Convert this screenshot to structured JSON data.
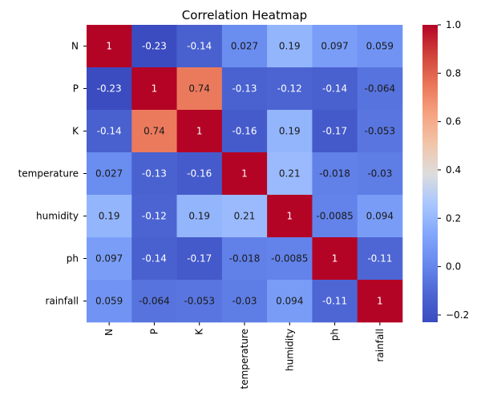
{
  "chart_data": {
    "type": "heatmap",
    "title": "Correlation Heatmap",
    "xlabel": "",
    "ylabel": "",
    "rows": [
      "N",
      "P",
      "K",
      "temperature",
      "humidity",
      "ph",
      "rainfall"
    ],
    "columns": [
      "N",
      "P",
      "K",
      "temperature",
      "humidity",
      "ph",
      "rainfall"
    ],
    "values": [
      [
        1,
        -0.23,
        -0.14,
        0.027,
        0.19,
        0.097,
        0.059
      ],
      [
        -0.23,
        1,
        0.74,
        -0.13,
        -0.12,
        -0.14,
        -0.064
      ],
      [
        -0.14,
        0.74,
        1,
        -0.16,
        0.19,
        -0.17,
        -0.053
      ],
      [
        0.027,
        -0.13,
        -0.16,
        1,
        0.21,
        -0.018,
        -0.03
      ],
      [
        0.19,
        -0.12,
        0.19,
        0.21,
        1,
        -0.0085,
        0.094
      ],
      [
        0.097,
        -0.14,
        -0.17,
        -0.018,
        -0.0085,
        1,
        -0.11
      ],
      [
        0.059,
        -0.064,
        -0.053,
        -0.03,
        0.094,
        -0.11,
        1
      ]
    ],
    "value_labels": [
      [
        "1",
        "-0.23",
        "-0.14",
        "0.027",
        "0.19",
        "0.097",
        "0.059"
      ],
      [
        "-0.23",
        "1",
        "0.74",
        "-0.13",
        "-0.12",
        "-0.14",
        "-0.064"
      ],
      [
        "-0.14",
        "0.74",
        "1",
        "-0.16",
        "0.19",
        "-0.17",
        "-0.053"
      ],
      [
        "0.027",
        "-0.13",
        "-0.16",
        "1",
        "0.21",
        "-0.018",
        "-0.03"
      ],
      [
        "0.19",
        "-0.12",
        "0.19",
        "0.21",
        "1",
        "-0.0085",
        "0.094"
      ],
      [
        "0.097",
        "-0.14",
        "-0.17",
        "-0.018",
        "-0.0085",
        "1",
        "-0.11"
      ],
      [
        "0.059",
        "-0.064",
        "-0.053",
        "-0.03",
        "0.094",
        "-0.11",
        "1"
      ]
    ],
    "colormap": "coolwarm",
    "colors": {
      "low": "#3b4cc0",
      "mid": "#dddddd",
      "high": "#b40426"
    },
    "value_range": [
      -0.23,
      1
    ],
    "colorbar": {
      "ticks": [
        1.0,
        0.8,
        0.6,
        0.4,
        0.2,
        0.0,
        -0.2
      ],
      "tick_labels": [
        "1.0",
        "0.8",
        "0.6",
        "0.4",
        "0.2",
        "0.0",
        "−0.2"
      ]
    }
  }
}
